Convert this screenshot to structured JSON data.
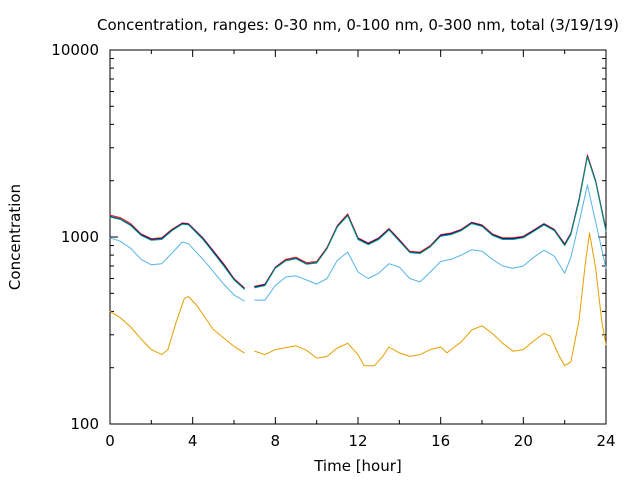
{
  "chart_data": {
    "type": "line",
    "title": "Concentration, ranges: 0-30 nm, 0-100 nm, 0-300 nm, total (3/19/19)",
    "xlabel": "Time [hour]",
    "ylabel": "Concentration",
    "xlim": [
      0,
      24
    ],
    "ylim": [
      100,
      10000
    ],
    "yscale": "log",
    "grid": false,
    "legend": "none",
    "x_ticks": [
      0,
      4,
      8,
      12,
      16,
      20,
      24
    ],
    "x_tick_labels": [
      "0",
      "4",
      "8",
      "12",
      "16",
      "20",
      "24"
    ],
    "y_ticks": [
      100,
      1000,
      10000
    ],
    "y_tick_labels": [
      "100",
      "1000",
      "10000"
    ],
    "series": [
      {
        "color": "#e69f00",
        "segments": [
          [
            [
              0,
              400
            ],
            [
              0.5,
              370
            ],
            [
              1,
              330
            ],
            [
              1.5,
              285
            ],
            [
              2,
              250
            ],
            [
              2.5,
              235
            ],
            [
              2.8,
              250
            ],
            [
              3.2,
              350
            ],
            [
              3.6,
              470
            ],
            [
              3.8,
              480
            ],
            [
              4.2,
              430
            ],
            [
              5,
              320
            ],
            [
              6,
              260
            ],
            [
              6.5,
              240
            ]
          ],
          [
            [
              7,
              245
            ],
            [
              7.5,
              235
            ],
            [
              8,
              250
            ],
            [
              9,
              262
            ],
            [
              9.5,
              248
            ],
            [
              10,
              225
            ],
            [
              10.5,
              230
            ],
            [
              11,
              255
            ],
            [
              11.5,
              270
            ],
            [
              12,
              235
            ],
            [
              12.3,
              205
            ],
            [
              12.8,
              205
            ],
            [
              13.2,
              230
            ],
            [
              13.5,
              258
            ],
            [
              14,
              240
            ],
            [
              14.5,
              230
            ],
            [
              15,
              235
            ],
            [
              15.5,
              250
            ],
            [
              16,
              258
            ],
            [
              16.3,
              240
            ],
            [
              16.6,
              255
            ],
            [
              17,
              275
            ],
            [
              17.5,
              318
            ],
            [
              18,
              335
            ],
            [
              18.5,
              305
            ],
            [
              19,
              270
            ],
            [
              19.5,
              245
            ],
            [
              20,
              250
            ],
            [
              20.5,
              278
            ],
            [
              21,
              305
            ],
            [
              21.3,
              295
            ],
            [
              21.7,
              235
            ],
            [
              22,
              205
            ],
            [
              22.3,
              215
            ],
            [
              22.7,
              360
            ],
            [
              23,
              720
            ],
            [
              23.2,
              1050
            ],
            [
              23.5,
              680
            ],
            [
              23.8,
              350
            ],
            [
              24,
              265
            ]
          ]
        ]
      },
      {
        "color": "#56b4e9",
        "segments": [
          [
            [
              0,
              990
            ],
            [
              0.5,
              950
            ],
            [
              1,
              870
            ],
            [
              1.5,
              760
            ],
            [
              2,
              710
            ],
            [
              2.5,
              720
            ],
            [
              3,
              820
            ],
            [
              3.5,
              940
            ],
            [
              3.8,
              920
            ],
            [
              4.5,
              760
            ],
            [
              5.5,
              560
            ],
            [
              6,
              490
            ],
            [
              6.5,
              455
            ]
          ],
          [
            [
              7,
              460
            ],
            [
              7.5,
              460
            ],
            [
              8,
              550
            ],
            [
              8.5,
              610
            ],
            [
              9,
              620
            ],
            [
              9.5,
              590
            ],
            [
              10,
              560
            ],
            [
              10.5,
              600
            ],
            [
              11,
              750
            ],
            [
              11.5,
              830
            ],
            [
              12,
              650
            ],
            [
              12.5,
              600
            ],
            [
              13,
              640
            ],
            [
              13.5,
              720
            ],
            [
              14,
              690
            ],
            [
              14.5,
              600
            ],
            [
              15,
              575
            ],
            [
              15.5,
              650
            ],
            [
              16,
              740
            ],
            [
              16.5,
              760
            ],
            [
              17,
              800
            ],
            [
              17.5,
              855
            ],
            [
              18,
              840
            ],
            [
              18.5,
              760
            ],
            [
              19,
              700
            ],
            [
              19.5,
              680
            ],
            [
              20,
              700
            ],
            [
              20.5,
              780
            ],
            [
              21,
              850
            ],
            [
              21.5,
              790
            ],
            [
              22,
              640
            ],
            [
              22.3,
              780
            ],
            [
              22.7,
              1200
            ],
            [
              23.1,
              1900
            ],
            [
              23.5,
              1200
            ],
            [
              24,
              680
            ]
          ]
        ]
      },
      {
        "color": "#e51e10",
        "segments": [
          [
            [
              0,
              1310
            ],
            [
              0.5,
              1270
            ],
            [
              1,
              1180
            ],
            [
              1.5,
              1040
            ],
            [
              2,
              980
            ],
            [
              2.5,
              990
            ],
            [
              3,
              1100
            ],
            [
              3.5,
              1190
            ],
            [
              3.8,
              1180
            ],
            [
              4.5,
              990
            ],
            [
              5.5,
              720
            ],
            [
              6,
              600
            ],
            [
              6.5,
              535
            ]
          ],
          [
            [
              7,
              545
            ],
            [
              7.5,
              560
            ],
            [
              8,
              690
            ],
            [
              8.5,
              760
            ],
            [
              9,
              780
            ],
            [
              9.5,
              730
            ],
            [
              10,
              740
            ],
            [
              10.5,
              880
            ],
            [
              11,
              1150
            ],
            [
              11.5,
              1330
            ],
            [
              12,
              990
            ],
            [
              12.5,
              930
            ],
            [
              13,
              990
            ],
            [
              13.5,
              1110
            ],
            [
              14,
              970
            ],
            [
              14.5,
              840
            ],
            [
              15,
              830
            ],
            [
              15.5,
              900
            ],
            [
              16,
              1030
            ],
            [
              16.5,
              1050
            ],
            [
              17,
              1100
            ],
            [
              17.5,
              1200
            ],
            [
              18,
              1160
            ],
            [
              18.5,
              1040
            ],
            [
              19,
              990
            ],
            [
              19.5,
              990
            ],
            [
              20,
              1010
            ],
            [
              20.5,
              1090
            ],
            [
              21,
              1180
            ],
            [
              21.5,
              1100
            ],
            [
              22,
              920
            ],
            [
              22.3,
              1050
            ],
            [
              22.7,
              1600
            ],
            [
              23.1,
              2750
            ],
            [
              23.5,
              2000
            ],
            [
              24,
              1100
            ]
          ]
        ]
      },
      {
        "color": "#0000aa",
        "segments": [
          [
            [
              0,
              1290
            ],
            [
              0.5,
              1250
            ],
            [
              1,
              1160
            ],
            [
              1.5,
              1030
            ],
            [
              2,
              970
            ],
            [
              2.5,
              980
            ],
            [
              3,
              1090
            ],
            [
              3.5,
              1180
            ],
            [
              3.8,
              1170
            ],
            [
              4.5,
              980
            ],
            [
              5.5,
              710
            ],
            [
              6,
              595
            ],
            [
              6.5,
              530
            ]
          ],
          [
            [
              7,
              540
            ],
            [
              7.5,
              555
            ],
            [
              8,
              685
            ],
            [
              8.5,
              750
            ],
            [
              9,
              770
            ],
            [
              9.5,
              720
            ],
            [
              10,
              730
            ],
            [
              10.5,
              870
            ],
            [
              11,
              1140
            ],
            [
              11.5,
              1310
            ],
            [
              12,
              980
            ],
            [
              12.5,
              920
            ],
            [
              13,
              980
            ],
            [
              13.5,
              1100
            ],
            [
              14,
              960
            ],
            [
              14.5,
              830
            ],
            [
              15,
              820
            ],
            [
              15.5,
              890
            ],
            [
              16,
              1020
            ],
            [
              16.5,
              1040
            ],
            [
              17,
              1090
            ],
            [
              17.5,
              1190
            ],
            [
              18,
              1150
            ],
            [
              18.5,
              1030
            ],
            [
              19,
              980
            ],
            [
              19.5,
              980
            ],
            [
              20,
              1000
            ],
            [
              20.5,
              1080
            ],
            [
              21,
              1170
            ],
            [
              21.5,
              1090
            ],
            [
              22,
              910
            ],
            [
              22.3,
              1040
            ],
            [
              22.7,
              1580
            ],
            [
              23.1,
              2700
            ],
            [
              23.5,
              1980
            ],
            [
              24,
              1080
            ]
          ]
        ]
      },
      {
        "color": "#009e73",
        "segments": [
          [
            [
              0,
              1280
            ],
            [
              0.5,
              1240
            ],
            [
              1,
              1150
            ],
            [
              1.5,
              1020
            ],
            [
              2,
              960
            ],
            [
              2.5,
              970
            ],
            [
              3,
              1080
            ],
            [
              3.5,
              1170
            ],
            [
              3.8,
              1160
            ],
            [
              4.5,
              970
            ],
            [
              5.5,
              700
            ],
            [
              6,
              590
            ],
            [
              6.5,
              525
            ]
          ],
          [
            [
              7,
              535
            ],
            [
              7.5,
              550
            ],
            [
              8,
              680
            ],
            [
              8.5,
              745
            ],
            [
              9,
              765
            ],
            [
              9.5,
              715
            ],
            [
              10,
              725
            ],
            [
              10.5,
              865
            ],
            [
              11,
              1130
            ],
            [
              11.5,
              1300
            ],
            [
              12,
              970
            ],
            [
              12.5,
              910
            ],
            [
              13,
              970
            ],
            [
              13.5,
              1090
            ],
            [
              14,
              950
            ],
            [
              14.5,
              825
            ],
            [
              15,
              815
            ],
            [
              15.5,
              885
            ],
            [
              16,
              1010
            ],
            [
              16.5,
              1030
            ],
            [
              17,
              1080
            ],
            [
              17.5,
              1180
            ],
            [
              18,
              1140
            ],
            [
              18.5,
              1020
            ],
            [
              19,
              970
            ],
            [
              19.5,
              970
            ],
            [
              20,
              990
            ],
            [
              20.5,
              1070
            ],
            [
              21,
              1160
            ],
            [
              21.5,
              1080
            ],
            [
              22,
              900
            ],
            [
              22.3,
              1030
            ],
            [
              22.7,
              1560
            ],
            [
              23.1,
              2680
            ],
            [
              23.5,
              1960
            ],
            [
              24,
              1070
            ]
          ]
        ]
      }
    ]
  }
}
